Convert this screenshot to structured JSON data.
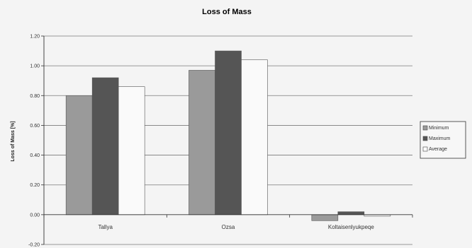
{
  "chart_data": {
    "type": "bar",
    "title": "Loss of Mass",
    "ylabel": "Loss of Mass [%]",
    "xlabel": "",
    "categories": [
      "Tallya",
      "Ozsa",
      "Koltaisenlyukpeqe"
    ],
    "series": [
      {
        "name": "Minimum",
        "values": [
          0.8,
          0.97,
          -0.04
        ],
        "color": "#9a9a9a"
      },
      {
        "name": "Maximum",
        "values": [
          0.92,
          1.1,
          0.02
        ],
        "color": "#555555"
      },
      {
        "name": "Average",
        "values": [
          0.86,
          1.04,
          -0.01
        ],
        "color": "#fafafa"
      }
    ],
    "ylim": [
      -0.2,
      1.2
    ],
    "yticks": [
      "-0.20",
      "0.00",
      "0.20",
      "0.40",
      "0.60",
      "0.80",
      "1.00",
      "1.20"
    ],
    "grid": true,
    "legend_position": "right"
  }
}
